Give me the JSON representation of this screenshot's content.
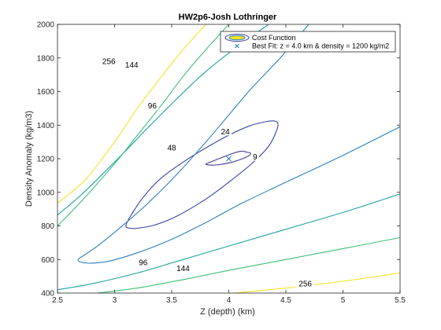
{
  "chart_data": {
    "type": "contour",
    "title": "HW2p6-Josh Lothringer",
    "xlabel": "Z (depth) (km)",
    "ylabel": "Density Anomaly (kg/m3)",
    "xlim": [
      2.5,
      5.5
    ],
    "ylim": [
      400,
      2000
    ],
    "xticks": [
      "2.5",
      "3",
      "3.5",
      "4",
      "4.5",
      "5",
      "5.5"
    ],
    "yticks": [
      "400",
      "600",
      "800",
      "1000",
      "1200",
      "1400",
      "1600",
      "1800",
      "2000"
    ],
    "grid": false,
    "legend": {
      "placement": "top-right",
      "entries": [
        {
          "label": "Cost Function",
          "marker": "contour-ellipse"
        },
        {
          "label": "Best Fit: z = 4.0 km & density = 1200 kg/m2",
          "marker": "x"
        }
      ]
    },
    "best_fit": {
      "x": 4.0,
      "y": 1200,
      "color": "#1f77b4"
    },
    "contours": [
      {
        "level": 9,
        "label": "9",
        "color": "#3d3b8e",
        "closed": true,
        "points": [
          [
            4.15,
            1240
          ],
          [
            4.11,
            1245
          ],
          [
            4.05,
            1235
          ],
          [
            3.95,
            1210
          ],
          [
            3.85,
            1183
          ],
          [
            3.8,
            1168
          ],
          [
            3.84,
            1162
          ],
          [
            3.92,
            1165
          ],
          [
            4.02,
            1178
          ],
          [
            4.12,
            1200
          ],
          [
            4.18,
            1220
          ],
          [
            4.19,
            1233
          ]
        ],
        "label_at": [
          4.23,
          1212
        ]
      },
      {
        "level": 24,
        "label": "24",
        "color": "#3a45a6",
        "closed": true,
        "points": [
          [
            4.4,
            1425
          ],
          [
            4.32,
            1420
          ],
          [
            4.18,
            1395
          ],
          [
            4.0,
            1340
          ],
          [
            3.8,
            1265
          ],
          [
            3.6,
            1180
          ],
          [
            3.4,
            1080
          ],
          [
            3.25,
            970
          ],
          [
            3.15,
            870
          ],
          [
            3.1,
            805
          ],
          [
            3.12,
            788
          ],
          [
            3.2,
            786
          ],
          [
            3.35,
            805
          ],
          [
            3.55,
            860
          ],
          [
            3.8,
            960
          ],
          [
            4.0,
            1060
          ],
          [
            4.2,
            1170
          ],
          [
            4.35,
            1275
          ],
          [
            4.42,
            1370
          ],
          [
            4.43,
            1410
          ]
        ],
        "label_at": [
          3.97,
          1362
        ]
      },
      {
        "level": 48,
        "label": "48",
        "color": "#2e7fbf",
        "open": true,
        "points": [
          [
            2.72,
            620
          ],
          [
            2.68,
            600
          ],
          [
            2.7,
            585
          ],
          [
            2.78,
            578
          ],
          [
            2.95,
            590
          ],
          [
            3.2,
            640
          ],
          [
            3.5,
            720
          ],
          [
            3.8,
            820
          ],
          [
            4.1,
            930
          ],
          [
            4.5,
            1060
          ],
          [
            5.0,
            1220
          ],
          [
            5.5,
            1390
          ]
        ],
        "points2": [
          [
            2.72,
            620
          ],
          [
            2.85,
            680
          ],
          [
            3.05,
            790
          ],
          [
            3.3,
            940
          ],
          [
            3.55,
            1110
          ],
          [
            3.8,
            1300
          ],
          [
            4.0,
            1460
          ],
          [
            4.2,
            1620
          ],
          [
            4.45,
            1800
          ],
          [
            4.7,
            2000
          ]
        ],
        "label_at": [
          3.5,
          1265
        ]
      },
      {
        "level": 96,
        "label": "96",
        "color": "#1fa3a3",
        "open": true,
        "points": [
          [
            2.5,
            420
          ],
          [
            2.8,
            455
          ],
          [
            3.2,
            520
          ],
          [
            3.6,
            600
          ],
          [
            4.0,
            680
          ],
          [
            4.5,
            780
          ],
          [
            5.0,
            880
          ],
          [
            5.5,
            990
          ]
        ],
        "points2": [
          [
            2.5,
            865
          ],
          [
            2.7,
            980
          ],
          [
            3.0,
            1180
          ],
          [
            3.3,
            1390
          ],
          [
            3.55,
            1560
          ],
          [
            3.8,
            1720
          ],
          [
            4.1,
            1880
          ],
          [
            4.35,
            2000
          ]
        ],
        "label_at": [
          3.33,
          1515
        ],
        "label2_at": [
          3.25,
          583
        ]
      },
      {
        "level": 144,
        "label": "144",
        "color": "#3fbf7a",
        "open": true,
        "points": [
          [
            2.85,
            400
          ],
          [
            3.2,
            430
          ],
          [
            3.6,
            480
          ],
          [
            4.0,
            535
          ],
          [
            4.5,
            600
          ],
          [
            5.0,
            665
          ],
          [
            5.5,
            730
          ]
        ],
        "points2": [
          [
            2.5,
            800
          ],
          [
            2.7,
            940
          ],
          [
            3.0,
            1170
          ],
          [
            3.2,
            1340
          ],
          [
            3.4,
            1510
          ],
          [
            3.6,
            1690
          ],
          [
            3.8,
            1850
          ],
          [
            4.0,
            2000
          ]
        ],
        "label_at": [
          3.15,
          1760
        ],
        "label2_at": [
          3.6,
          548
        ]
      },
      {
        "level": 256,
        "label": "256",
        "color": "#f4e32b",
        "open": true,
        "points": [
          [
            4.05,
            400
          ],
          [
            4.5,
            430
          ],
          [
            5.0,
            470
          ],
          [
            5.5,
            520
          ]
        ],
        "points2": [
          [
            2.5,
            935
          ],
          [
            2.75,
            1080
          ],
          [
            3.0,
            1300
          ],
          [
            3.2,
            1500
          ],
          [
            3.4,
            1680
          ],
          [
            3.6,
            1850
          ],
          [
            3.8,
            2000
          ]
        ],
        "label_at": [
          2.95,
          1780
        ],
        "label2_at": [
          4.67,
          455
        ]
      }
    ]
  }
}
